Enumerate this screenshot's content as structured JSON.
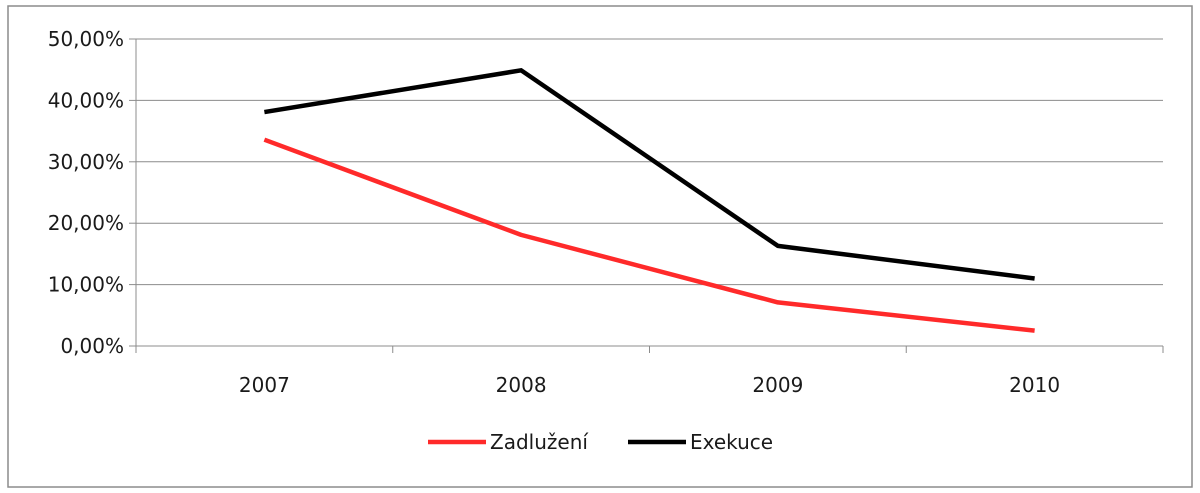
{
  "chart_data": {
    "type": "line",
    "categories": [
      "2007",
      "2008",
      "2009",
      "2010"
    ],
    "series": [
      {
        "name": "Zadlužení",
        "color": "#ff2a2a",
        "values": [
          33.6,
          18.1,
          7.1,
          2.5
        ]
      },
      {
        "name": "Exekuce",
        "color": "#000000",
        "values": [
          38.1,
          44.9,
          16.3,
          11.0
        ]
      }
    ],
    "ylim": [
      0,
      50
    ],
    "y_ticks": [
      "0,00%",
      "10,00%",
      "20,00%",
      "30,00%",
      "40,00%",
      "50,00%"
    ],
    "grid": true,
    "legend_position": "bottom",
    "title": "",
    "xlabel": "",
    "ylabel": ""
  }
}
